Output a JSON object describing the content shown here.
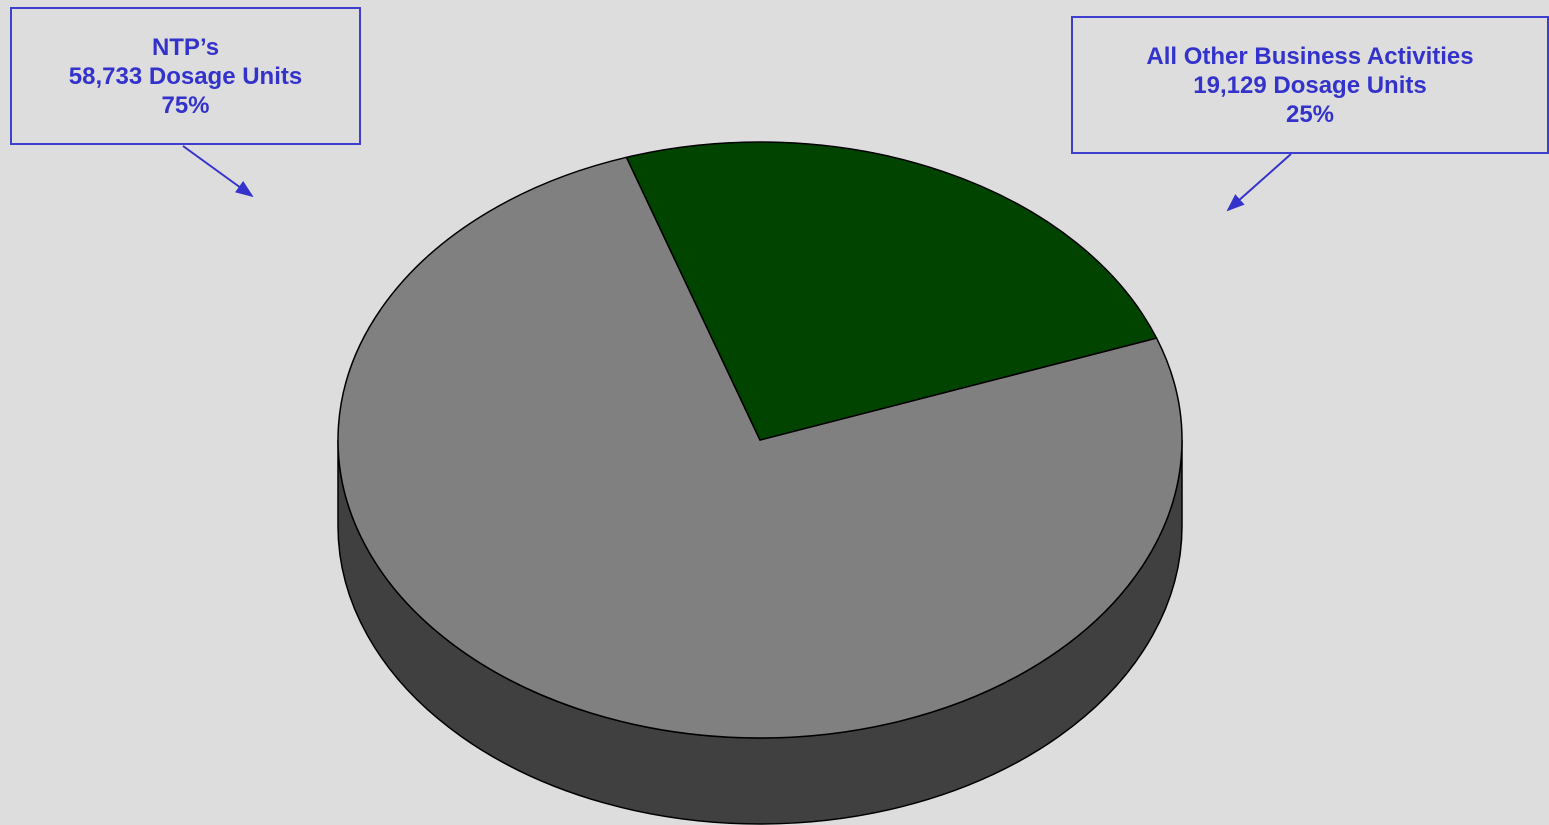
{
  "chart_data": {
    "type": "pie",
    "style": "3d",
    "title": "",
    "slices": [
      {
        "label": "NTP’s",
        "value": 58733,
        "value_text": "58,733 Dosage Units",
        "percent_text": "75%",
        "color": "#808080"
      },
      {
        "label": "All Other Business Activities",
        "value": 19129,
        "value_text": "19,129 Dosage Units",
        "percent_text": "25%",
        "color": "#004400"
      }
    ],
    "legend": "none",
    "annotation_color": "#3333cc",
    "background": "#dddddd"
  }
}
